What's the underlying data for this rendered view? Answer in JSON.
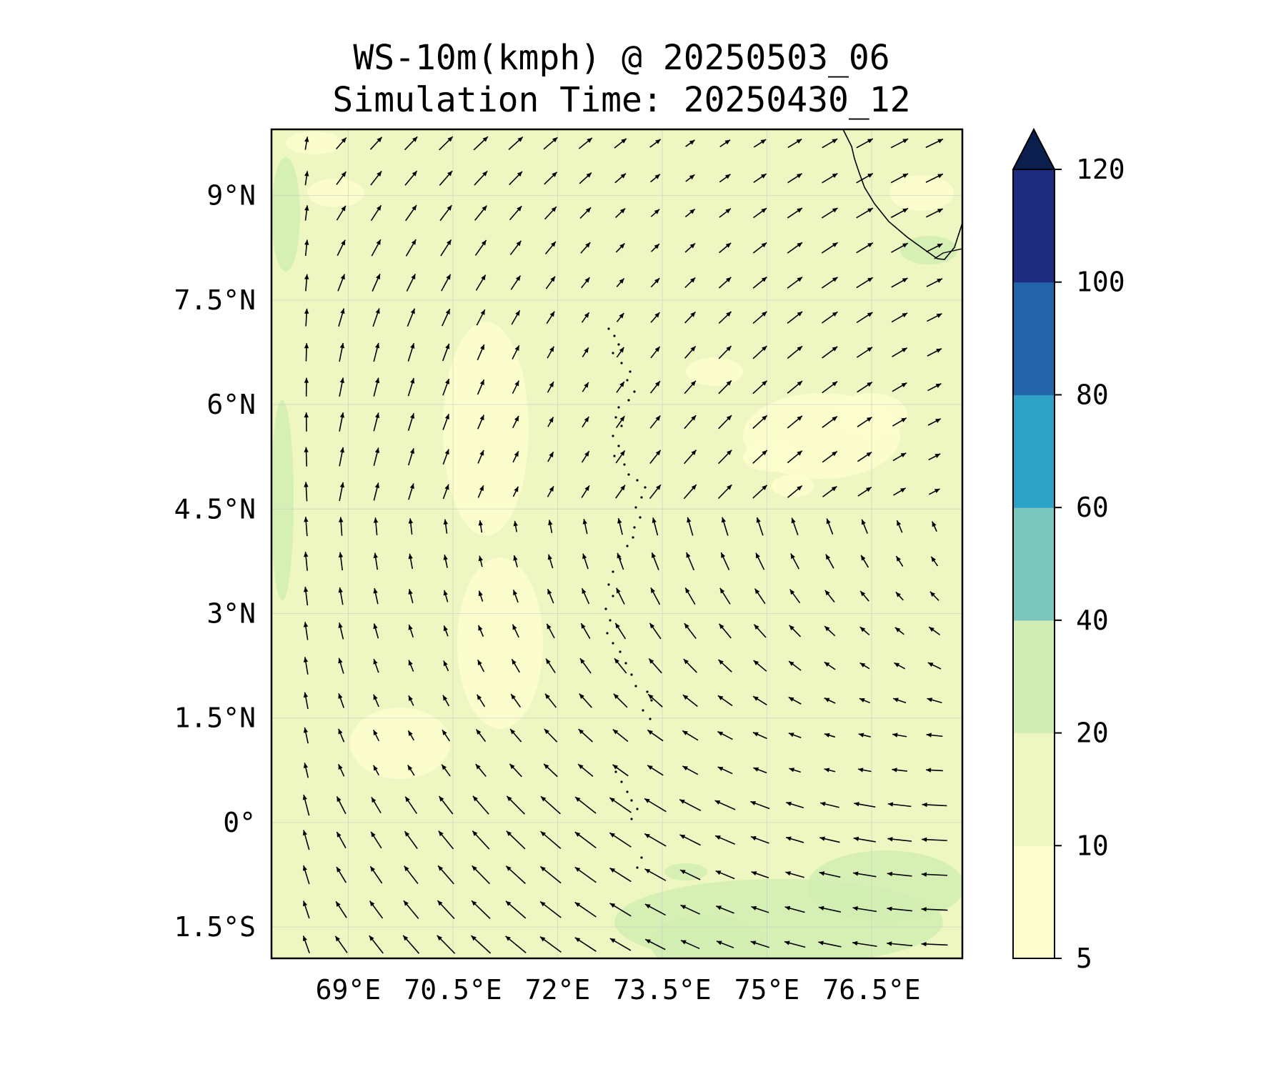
{
  "title": {
    "line1": "WS-10m(kmph) @ 20250503_06",
    "line2": "Simulation Time: 20250430_12"
  },
  "map": {
    "extent_lon": [
      67.9,
      77.8
    ],
    "extent_lat": [
      -1.95,
      9.95
    ],
    "lon_ticks": [
      {
        "value": 69,
        "label": "69°E"
      },
      {
        "value": 70.5,
        "label": "70.5°E"
      },
      {
        "value": 72,
        "label": "72°E"
      },
      {
        "value": 73.5,
        "label": "73.5°E"
      },
      {
        "value": 75,
        "label": "75°E"
      },
      {
        "value": 76.5,
        "label": "76.5°E"
      }
    ],
    "lat_ticks": [
      {
        "value": 9,
        "label": "9°N"
      },
      {
        "value": 7.5,
        "label": "7.5°N"
      },
      {
        "value": 6,
        "label": "6°N"
      },
      {
        "value": 4.5,
        "label": "4.5°N"
      },
      {
        "value": 3,
        "label": "3°N"
      },
      {
        "value": 1.5,
        "label": "1.5°N"
      },
      {
        "value": 0,
        "label": "0°"
      },
      {
        "value": -1.5,
        "label": "1.5°S"
      }
    ],
    "gridlines": true,
    "background_fill": "#eef7c1",
    "coastline_color": "#000000",
    "coastline_features": [
      "south-india-coast",
      "maldives-atolls-dotted"
    ],
    "vector_field": "wind-10m-arrows",
    "vector_color": "#000000"
  },
  "colorbar": {
    "levels": [
      5,
      10,
      20,
      40,
      60,
      80,
      100,
      120
    ],
    "colors": [
      "#fdfece",
      "#eef7c1",
      "#d1edb3",
      "#7ac8bd",
      "#2ea1c6",
      "#2263a9",
      "#1e2b7f"
    ],
    "extend_color": "#0b1f4e",
    "extend": "max",
    "tick_labels": [
      {
        "value": 120,
        "label": "120"
      },
      {
        "value": 100,
        "label": "100"
      },
      {
        "value": 80,
        "label": "80"
      },
      {
        "value": 60,
        "label": "60"
      },
      {
        "value": 40,
        "label": "40"
      },
      {
        "value": 20,
        "label": "20"
      },
      {
        "value": 10,
        "label": "10"
      },
      {
        "value": 5,
        "label": "5"
      }
    ]
  }
}
